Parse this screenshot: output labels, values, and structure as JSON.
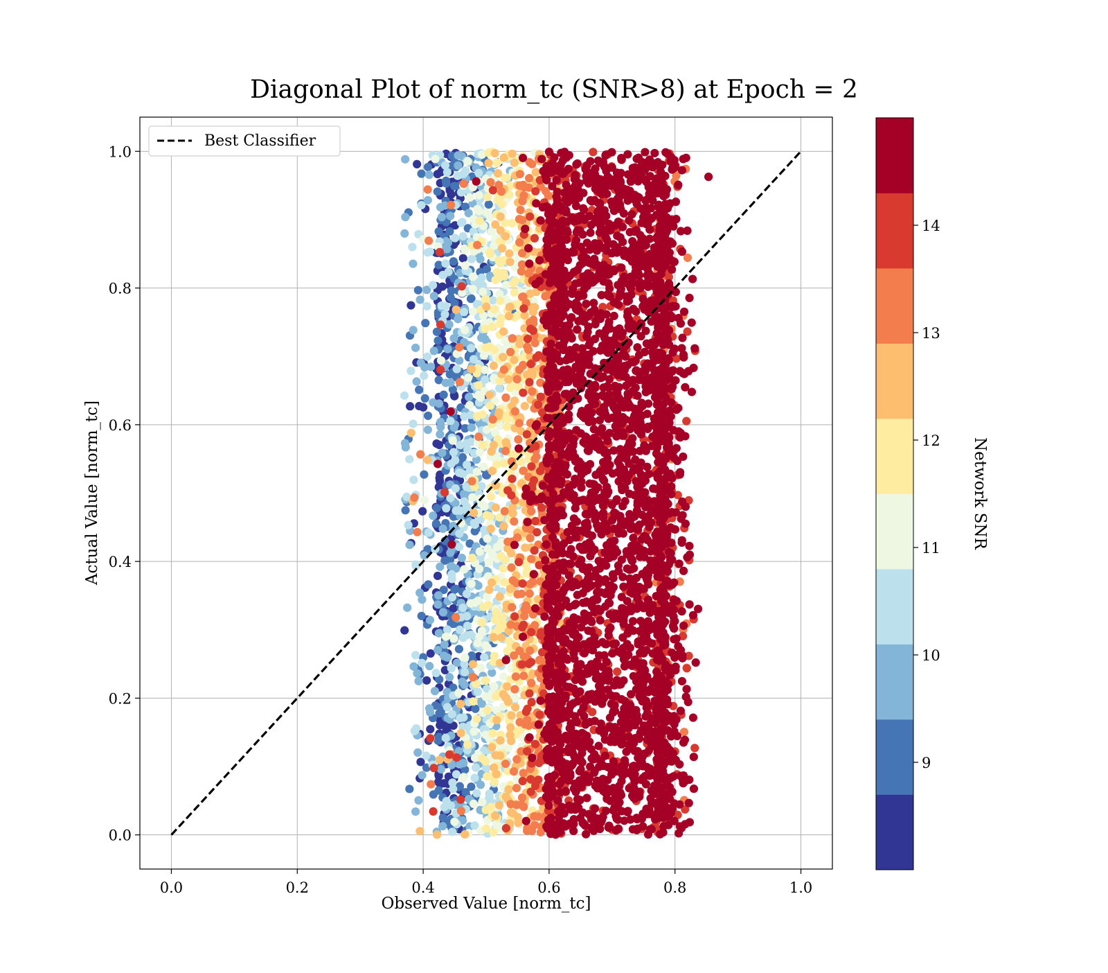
{
  "chart_data": {
    "type": "scatter",
    "title": "Diagonal Plot of norm_tc (SNR>8) at Epoch = 2",
    "xlabel": "Observed Value [norm_tc]",
    "ylabel": "Actual Value [norm_tc]",
    "xlim": [
      -0.05,
      1.05
    ],
    "ylim": [
      -0.05,
      1.05
    ],
    "xticks": [
      0.0,
      0.2,
      0.4,
      0.6,
      0.8,
      1.0
    ],
    "yticks": [
      0.0,
      0.2,
      0.4,
      0.6,
      0.8,
      1.0
    ],
    "xtick_labels": [
      "0.0",
      "0.2",
      "0.4",
      "0.6",
      "0.8",
      "1.0"
    ],
    "ytick_labels": [
      "0.0",
      "0.2",
      "0.4",
      "0.6",
      "0.8",
      "1.0"
    ],
    "grid": true,
    "legend_position": "top-left",
    "reference_line": {
      "name": "Best Classifier",
      "x": [
        0.0,
        1.0
      ],
      "y": [
        0.0,
        1.0
      ],
      "style": "dashed",
      "color": "#000000"
    },
    "scatter_description": {
      "color_by": "Network SNR",
      "x_ranges_by_snr": [
        {
          "snr": [
            8,
            9
          ],
          "x": [
            0.37,
            0.52
          ]
        },
        {
          "snr": [
            9,
            10
          ],
          "x": [
            0.38,
            0.53
          ]
        },
        {
          "snr": [
            10,
            11
          ],
          "x": [
            0.38,
            0.55
          ]
        },
        {
          "snr": [
            11,
            12
          ],
          "x": [
            0.39,
            0.57
          ]
        },
        {
          "snr": [
            12,
            13
          ],
          "x": [
            0.4,
            0.6
          ]
        },
        {
          "snr": [
            13,
            14
          ],
          "x": [
            0.42,
            0.66
          ]
        },
        {
          "snr": [
            14,
            15
          ],
          "x": [
            0.45,
            0.85
          ]
        }
      ],
      "y_range": [
        0.0,
        1.0
      ]
    },
    "colorbar": {
      "label": "Network SNR",
      "min": 8,
      "max": 15,
      "ticks": [
        9,
        10,
        11,
        12,
        13,
        14
      ],
      "tick_labels": [
        "9",
        "10",
        "11",
        "12",
        "13",
        "14"
      ],
      "colors": [
        "#313695",
        "#4575b4",
        "#82b5d8",
        "#bde1ec",
        "#eef7e1",
        "#feeca0",
        "#fdbe70",
        "#f47d4d",
        "#d83a2f",
        "#a50026"
      ]
    }
  }
}
